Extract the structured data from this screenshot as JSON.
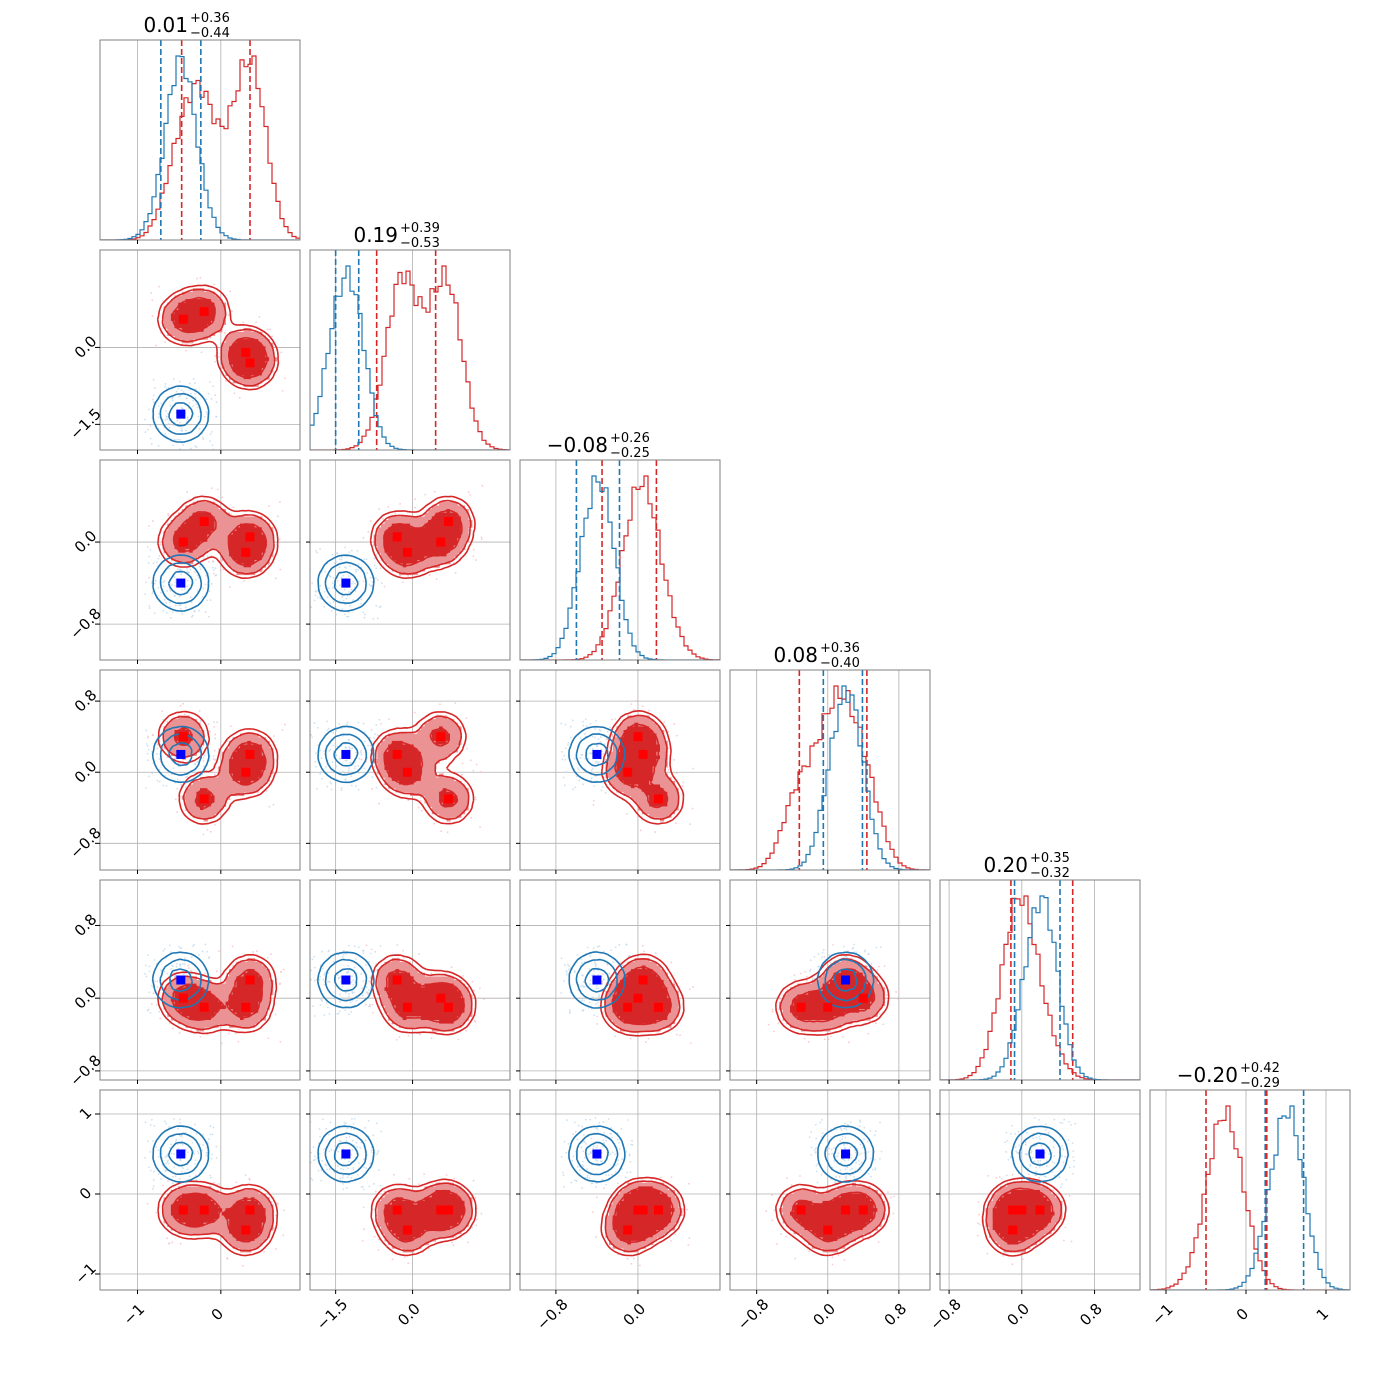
{
  "colors": {
    "red": "#d62728",
    "red_light": "#eb9394",
    "blue": "#1f77b4",
    "marker_red": "#ff0000",
    "marker_blue": "#0000ff",
    "frame": "#808080",
    "grid": "#b0b0b0"
  },
  "chart_data": {
    "type": "corner",
    "grid": true,
    "n_params": 6,
    "params": [
      {
        "range": [
          -1.45,
          0.95
        ],
        "ticks": [
          -1,
          0
        ],
        "tick_labels": [
          "−1",
          "0"
        ]
      },
      {
        "range": [
          -2.0,
          1.9
        ],
        "ticks": [
          -1.5,
          0.0
        ],
        "tick_labels": [
          "−1.5",
          "0.0"
        ]
      },
      {
        "range": [
          -1.15,
          0.8
        ],
        "ticks": [
          -0.8,
          0.0
        ],
        "tick_labels": [
          "−0.8",
          "0.0"
        ]
      },
      {
        "range": [
          -1.1,
          1.15
        ],
        "ticks": [
          -0.8,
          0.0,
          0.8
        ],
        "tick_labels": [
          "−0.8",
          "0.0",
          "0.8"
        ]
      },
      {
        "range": [
          -0.9,
          1.3
        ],
        "ticks": [
          -0.8,
          0.0,
          0.8
        ],
        "tick_labels": [
          "−0.8",
          "0.0",
          "0.8"
        ]
      },
      {
        "range": [
          -1.2,
          1.3
        ],
        "ticks": [
          -1,
          0,
          1
        ],
        "tick_labels": [
          "−1",
          "0",
          "1"
        ]
      }
    ],
    "titles": [
      {
        "center": "0.01",
        "plus": "+0.36",
        "minus": "−0.44"
      },
      {
        "center": "0.19",
        "plus": "+0.39",
        "minus": "−0.53"
      },
      {
        "center": "−0.08",
        "plus": "+0.26",
        "minus": "−0.25"
      },
      {
        "center": "0.08",
        "plus": "+0.36",
        "minus": "−0.40"
      },
      {
        "center": "0.20",
        "plus": "+0.35",
        "minus": "−0.32"
      },
      {
        "center": "−0.20",
        "plus": "+0.42",
        "minus": "−0.29"
      }
    ],
    "series": [
      {
        "color": "red",
        "components": [
          [
            -0.45,
            0.55,
            0.0,
            0.4,
            0.0,
            -0.2
          ],
          [
            -0.2,
            0.7,
            0.2,
            -0.3,
            -0.1,
            -0.2
          ],
          [
            0.3,
            -0.1,
            -0.1,
            0.0,
            -0.1,
            -0.45
          ],
          [
            0.35,
            -0.3,
            0.05,
            0.2,
            0.2,
            -0.2
          ]
        ],
        "markers": [
          [
            -0.45,
            0.55,
            0.0,
            0.4,
            0.0,
            -0.2
          ],
          [
            -0.2,
            0.7,
            0.2,
            -0.3,
            -0.1,
            -0.2
          ],
          [
            0.3,
            -0.1,
            -0.1,
            0.0,
            -0.1,
            -0.45
          ],
          [
            0.35,
            -0.3,
            0.05,
            0.2,
            0.2,
            -0.2
          ]
        ],
        "quantiles": [
          [
            -0.47,
            0.35
          ],
          [
            -0.7,
            0.45
          ],
          [
            -0.35,
            0.18
          ],
          [
            -0.32,
            0.44
          ],
          [
            -0.12,
            0.56
          ],
          [
            -0.5,
            0.26
          ]
        ]
      },
      {
        "color": "blue",
        "components": [
          [
            -0.48,
            -1.3,
            -0.4,
            0.2,
            0.2,
            0.5
          ]
        ],
        "markers": [
          [
            -0.48,
            -1.3,
            -0.4,
            0.2,
            0.2,
            0.5
          ]
        ],
        "quantiles": [
          [
            -0.72,
            -0.24
          ],
          [
            -1.5,
            -1.05
          ],
          [
            -0.6,
            -0.18
          ],
          [
            -0.05,
            0.39
          ],
          [
            -0.08,
            0.42
          ],
          [
            0.24,
            0.72
          ]
        ]
      }
    ]
  }
}
